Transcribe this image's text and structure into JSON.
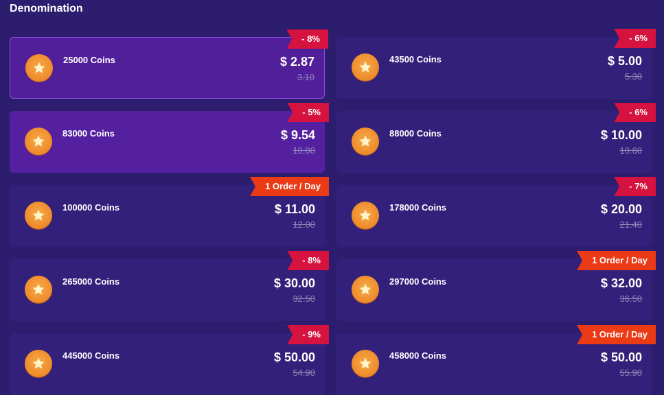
{
  "title": "Denomination",
  "colors": {
    "background": "#2c1d6f",
    "card": "#33207a",
    "selected_card": "#5420a0",
    "discount_tag": "#d6123f",
    "limit_tag": "#ea3a16"
  },
  "items": [
    {
      "name": "25000 Coins",
      "price": "$ 2.87",
      "old_price": "3.10",
      "tag": "- 8%",
      "tag_type": "discount",
      "state": "active"
    },
    {
      "name": "43500 Coins",
      "price": "$ 5.00",
      "old_price": "5.30",
      "tag": "- 6%",
      "tag_type": "discount",
      "state": "normal"
    },
    {
      "name": "83000 Coins",
      "price": "$ 9.54",
      "old_price": "10.00",
      "tag": "- 5%",
      "tag_type": "discount",
      "state": "highlighted"
    },
    {
      "name": "88000 Coins",
      "price": "$ 10.00",
      "old_price": "10.60",
      "tag": "- 6%",
      "tag_type": "discount",
      "state": "normal"
    },
    {
      "name": "100000 Coins",
      "price": "$ 11.00",
      "old_price": "12.00",
      "tag": "1 Order / Day",
      "tag_type": "limit",
      "state": "normal"
    },
    {
      "name": "178000 Coins",
      "price": "$ 20.00",
      "old_price": "21.40",
      "tag": "- 7%",
      "tag_type": "discount",
      "state": "normal"
    },
    {
      "name": "265000 Coins",
      "price": "$ 30.00",
      "old_price": "32.50",
      "tag": "- 8%",
      "tag_type": "discount",
      "state": "normal"
    },
    {
      "name": "297000 Coins",
      "price": "$ 32.00",
      "old_price": "36.50",
      "tag": "1 Order / Day",
      "tag_type": "limit",
      "state": "normal"
    },
    {
      "name": "445000 Coins",
      "price": "$ 50.00",
      "old_price": "54.90",
      "tag": "- 9%",
      "tag_type": "discount",
      "state": "normal"
    },
    {
      "name": "458000 Coins",
      "price": "$ 50.00",
      "old_price": "55.90",
      "tag": "1 Order / Day",
      "tag_type": "limit",
      "state": "normal"
    }
  ]
}
